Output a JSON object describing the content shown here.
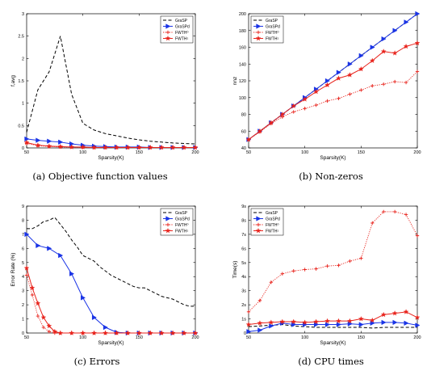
{
  "chart_data": [
    {
      "type": "line",
      "caption": "(a) Objective function values",
      "xlabel": "Sparsity(K)",
      "ylabel": "f,avg",
      "xlim": [
        50,
        200
      ],
      "ylim": [
        0,
        3
      ],
      "xticks": [
        50,
        100,
        150,
        200
      ],
      "yticks": [
        0,
        0.5,
        1,
        1.5,
        2,
        2.5,
        3
      ],
      "xtick_labels": [
        "50",
        "100",
        "150",
        "200"
      ],
      "ytick_labels": [
        "0",
        "0.5",
        "1",
        "1.5",
        "2",
        "2.5",
        "3"
      ],
      "legend_position": "top-right",
      "x": [
        50,
        60,
        70,
        80,
        90,
        100,
        110,
        120,
        130,
        140,
        150,
        160,
        170,
        180,
        190,
        200
      ],
      "series": [
        {
          "name": "GraSP",
          "color": "#000000",
          "dash": "dashed",
          "marker": "none",
          "values": [
            0.35,
            1.3,
            1.7,
            2.5,
            1.2,
            0.55,
            0.4,
            0.32,
            0.27,
            0.22,
            0.18,
            0.15,
            0.13,
            0.11,
            0.1,
            0.09
          ]
        },
        {
          "name": "GraSPd",
          "color": "#1a34e6",
          "dash": "solid",
          "marker": "triangle-right",
          "values": [
            0.2,
            0.17,
            0.15,
            0.13,
            0.09,
            0.06,
            0.04,
            0.03,
            0.02,
            0.02,
            0.02,
            0.01,
            0.01,
            0.01,
            0.01,
            0.01
          ]
        },
        {
          "name": "FWTH⁰",
          "color": "#e8231c",
          "dash": "dotted",
          "marker": "plus",
          "values": [
            0.1,
            0.05,
            0.03,
            0.02,
            0.02,
            0.01,
            0.01,
            0.01,
            0.01,
            0.01,
            0.01,
            0.01,
            0.01,
            0.01,
            0.01,
            0.01
          ]
        },
        {
          "name": "FWTH¹",
          "color": "#e8231c",
          "dash": "solid",
          "marker": "star",
          "values": [
            0.12,
            0.06,
            0.04,
            0.03,
            0.02,
            0.02,
            0.01,
            0.01,
            0.01,
            0.01,
            0.01,
            0.01,
            0.01,
            0.01,
            0.01,
            0.01
          ]
        }
      ]
    },
    {
      "type": "line",
      "caption": "(b) Non-zeros",
      "xlabel": "Sparsity(K)",
      "ylabel": "nnz",
      "xlim": [
        50,
        200
      ],
      "ylim": [
        40,
        200
      ],
      "xticks": [
        50,
        100,
        150,
        200
      ],
      "yticks": [
        40,
        60,
        80,
        100,
        120,
        140,
        160,
        180,
        200
      ],
      "xtick_labels": [
        "50",
        "100",
        "150",
        "200"
      ],
      "ytick_labels": [
        "40",
        "60",
        "80",
        "100",
        "120",
        "140",
        "160",
        "180",
        "200"
      ],
      "legend_position": "top-left",
      "x": [
        50,
        60,
        70,
        80,
        90,
        100,
        110,
        120,
        130,
        140,
        150,
        160,
        170,
        180,
        190,
        200
      ],
      "series": [
        {
          "name": "GraSP",
          "color": "#000000",
          "dash": "dashed",
          "marker": "none",
          "values": [
            50,
            60,
            70,
            80,
            90,
            100,
            110,
            120,
            130,
            140,
            150,
            160,
            170,
            180,
            190,
            200
          ]
        },
        {
          "name": "GraSPd",
          "color": "#1a34e6",
          "dash": "solid",
          "marker": "triangle-right",
          "values": [
            50,
            60,
            70,
            80,
            90,
            100,
            110,
            120,
            130,
            140,
            150,
            160,
            170,
            180,
            190,
            200
          ]
        },
        {
          "name": "FWTH⁰",
          "color": "#e8231c",
          "dash": "dotted",
          "marker": "plus",
          "values": [
            50,
            59,
            69,
            77,
            83,
            87,
            91,
            96,
            99,
            104,
            109,
            114,
            116,
            119,
            118,
            131
          ]
        },
        {
          "name": "FWTH¹",
          "color": "#e8231c",
          "dash": "solid",
          "marker": "star",
          "values": [
            50,
            60,
            70,
            80,
            90,
            98,
            107,
            115,
            123,
            127,
            134,
            144,
            155,
            153,
            161,
            165
          ]
        }
      ]
    },
    {
      "type": "line",
      "caption": "(c) Errors",
      "xlabel": "Sparsity(K)",
      "ylabel": "Error Rate (%)",
      "xlim": [
        50,
        200
      ],
      "ylim": [
        0,
        9
      ],
      "xticks": [
        50,
        100,
        150,
        200
      ],
      "yticks": [
        0,
        1,
        2,
        3,
        4,
        5,
        6,
        7,
        8,
        9
      ],
      "xtick_labels": [
        "50",
        "100",
        "150",
        "200"
      ],
      "ytick_labels": [
        "0",
        "1",
        "2",
        "3",
        "4",
        "5",
        "6",
        "7",
        "8",
        "9"
      ],
      "legend_position": "top-right",
      "series": [
        {
          "name": "GraSP",
          "color": "#000000",
          "dash": "dashed",
          "marker": "none",
          "x": [
            50,
            55,
            60,
            65,
            70,
            75,
            80,
            85,
            90,
            95,
            100,
            105,
            110,
            115,
            120,
            125,
            130,
            135,
            140,
            145,
            150,
            155,
            160,
            165,
            170,
            175,
            180,
            185,
            190,
            195,
            200
          ],
          "values": [
            7.4,
            7.4,
            7.6,
            7.9,
            8.0,
            8.2,
            7.7,
            7.2,
            6.6,
            6.1,
            5.5,
            5.3,
            5.1,
            4.7,
            4.4,
            4.1,
            3.9,
            3.7,
            3.5,
            3.3,
            3.2,
            3.2,
            3.0,
            2.8,
            2.6,
            2.5,
            2.4,
            2.2,
            2.0,
            1.9,
            1.9
          ]
        },
        {
          "name": "GraSPd",
          "color": "#1a34e6",
          "dash": "solid",
          "marker": "triangle-right",
          "x": [
            50,
            60,
            70,
            80,
            90,
            100,
            110,
            120,
            130,
            140,
            150,
            160,
            170,
            180,
            190,
            200
          ],
          "values": [
            7.0,
            6.2,
            6.0,
            5.5,
            4.2,
            2.5,
            1.1,
            0.4,
            0.05,
            0.0,
            0.0,
            0.0,
            0.0,
            0.0,
            0.0,
            0.0
          ]
        },
        {
          "name": "FWTH⁰",
          "color": "#e8231c",
          "dash": "dotted",
          "marker": "plus",
          "x": [
            50,
            55,
            60,
            65,
            70,
            75,
            80,
            90,
            100,
            110,
            120,
            130,
            140,
            150,
            160,
            170,
            180,
            190,
            200
          ],
          "values": [
            4.1,
            2.7,
            1.2,
            0.4,
            0.1,
            0.0,
            0.0,
            0.0,
            0.0,
            0.0,
            0.0,
            0.0,
            0.0,
            0.0,
            0.0,
            0.0,
            0.0,
            0.0,
            0.0
          ]
        },
        {
          "name": "FWTH¹",
          "color": "#e8231c",
          "dash": "solid",
          "marker": "star",
          "x": [
            50,
            55,
            60,
            65,
            70,
            75,
            80,
            90,
            100,
            110,
            120,
            130,
            140,
            150,
            160,
            170,
            180,
            190,
            200
          ],
          "values": [
            4.6,
            3.2,
            2.1,
            1.1,
            0.5,
            0.1,
            0.0,
            0.0,
            0.0,
            0.0,
            0.0,
            0.0,
            0.0,
            0.0,
            0.0,
            0.0,
            0.0,
            0.0,
            0.0
          ]
        }
      ]
    },
    {
      "type": "line",
      "caption": "(d) CPU times",
      "xlabel": "Sparsity(K)",
      "ylabel": "Time(s)",
      "xlim": [
        50,
        200
      ],
      "ylim": [
        0,
        9
      ],
      "xticks": [
        50,
        100,
        150,
        200
      ],
      "yticks": [
        0,
        1,
        2,
        3,
        4,
        5,
        6,
        7,
        8,
        9
      ],
      "xtick_labels": [
        "50",
        "100",
        "150",
        "200"
      ],
      "ytick_labels": [
        "0",
        "1s",
        "2s",
        "3s",
        "4s",
        "5s",
        "6s",
        "7s",
        "8s",
        "9s"
      ],
      "legend_position": "top-left",
      "x": [
        50,
        60,
        70,
        80,
        90,
        100,
        110,
        120,
        130,
        140,
        150,
        160,
        170,
        180,
        190,
        200
      ],
      "series": [
        {
          "name": "GraSP",
          "color": "#000000",
          "dash": "dashed",
          "marker": "none",
          "values": [
            0.45,
            0.5,
            0.55,
            0.6,
            0.5,
            0.45,
            0.4,
            0.4,
            0.4,
            0.4,
            0.4,
            0.35,
            0.4,
            0.4,
            0.4,
            0.4
          ]
        },
        {
          "name": "GraSPd",
          "color": "#1a34e6",
          "dash": "solid",
          "marker": "triangle-right",
          "values": [
            0.1,
            0.2,
            0.5,
            0.7,
            0.6,
            0.6,
            0.6,
            0.6,
            0.6,
            0.65,
            0.6,
            0.7,
            0.75,
            0.75,
            0.7,
            0.55
          ]
        },
        {
          "name": "FWTH⁰",
          "color": "#e8231c",
          "dash": "dotted",
          "marker": "plus",
          "values": [
            1.5,
            2.3,
            3.6,
            4.2,
            4.4,
            4.5,
            4.55,
            4.75,
            4.8,
            5.1,
            5.3,
            7.8,
            8.6,
            8.6,
            8.4,
            6.9
          ]
        },
        {
          "name": "FWTH¹",
          "color": "#e8231c",
          "dash": "solid",
          "marker": "star",
          "values": [
            0.6,
            0.7,
            0.75,
            0.8,
            0.8,
            0.75,
            0.8,
            0.85,
            0.85,
            0.85,
            1.0,
            0.9,
            1.3,
            1.4,
            1.5,
            1.1
          ]
        }
      ]
    }
  ]
}
